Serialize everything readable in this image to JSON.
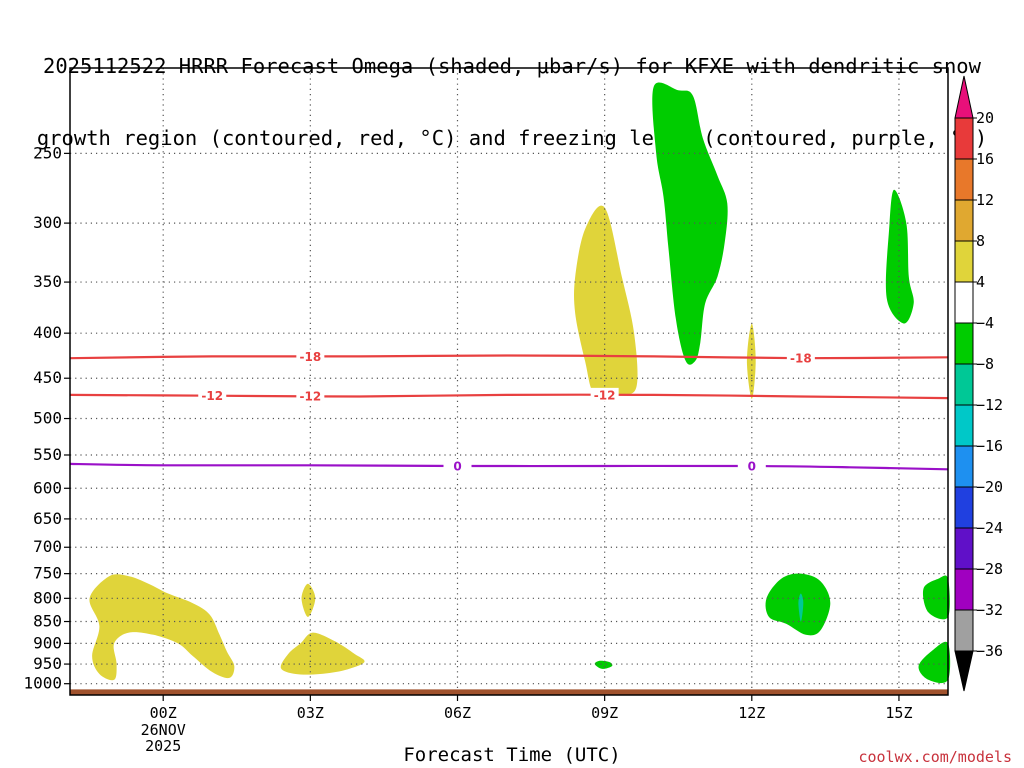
{
  "title_line1": "2025112522 HRRR Forecast Omega (shaded, μbar/s) for KFXE with dendritic snow",
  "title_line2": "growth region (contoured, red, °C) and freezing level (contoured, purple, °C)",
  "credit": "coolwx.com/models",
  "chart_data": {
    "type": "time-height contour",
    "xlabel": "Forecast Time (UTC)",
    "ylabel": "",
    "x_ticks": [
      {
        "hour": 2,
        "label": "00Z",
        "sub": [
          "26NOV",
          "2025"
        ]
      },
      {
        "hour": 5,
        "label": "03Z"
      },
      {
        "hour": 8,
        "label": "06Z"
      },
      {
        "hour": 11,
        "label": "09Z"
      },
      {
        "hour": 14,
        "label": "12Z"
      },
      {
        "hour": 17,
        "label": "15Z"
      }
    ],
    "xlim": [
      0.1,
      18.0
    ],
    "y_scale": "log",
    "y_ticks": [
      250,
      300,
      350,
      400,
      450,
      500,
      550,
      600,
      650,
      700,
      750,
      800,
      850,
      900,
      950,
      1000
    ],
    "ylim": [
      200,
      1030
    ],
    "surface_pressure": 1015,
    "colorbar": {
      "levels": [
        20,
        16,
        12,
        8,
        4,
        -4,
        -8,
        -12,
        -16,
        -20,
        -24,
        -28,
        -32,
        -36
      ],
      "colors": [
        "#e8107a",
        "#e83a3a",
        "#e8782a",
        "#e0a830",
        "#e0d43a",
        "#ffffff",
        "#00cc00",
        "#00c896",
        "#00c8c8",
        "#1e90f0",
        "#2040e0",
        "#6010c8",
        "#a000c0",
        "#a0a0a0",
        "#000000"
      ]
    },
    "contours": [
      {
        "name": "-18",
        "color": "#e84040",
        "label": "-18",
        "points": [
          [
            0.1,
            427
          ],
          [
            3,
            425
          ],
          [
            6,
            425
          ],
          [
            9,
            424
          ],
          [
            12,
            425
          ],
          [
            15,
            427
          ],
          [
            18,
            426
          ]
        ],
        "label_hours": [
          5.0,
          15.0
        ]
      },
      {
        "name": "-12",
        "color": "#e84040",
        "label": "-12",
        "points": [
          [
            0.1,
            470
          ],
          [
            3,
            471
          ],
          [
            6,
            472
          ],
          [
            9,
            470
          ],
          [
            12,
            470
          ],
          [
            15,
            472
          ],
          [
            18,
            474
          ]
        ],
        "label_hours": [
          3.0,
          5.0,
          11.0
        ]
      },
      {
        "name": "0",
        "color": "#9a10c8",
        "label": "0",
        "points": [
          [
            0.1,
            563
          ],
          [
            2,
            565
          ],
          [
            5,
            565
          ],
          [
            8,
            566
          ],
          [
            11,
            566
          ],
          [
            14,
            566
          ],
          [
            16,
            568
          ],
          [
            18,
            571
          ]
        ],
        "label_hours": [
          8.0,
          14.0
        ]
      }
    ],
    "shaded_regions": [
      {
        "value": 4,
        "color": "#e0d43a",
        "points": [
          [
            0.5,
            800
          ],
          [
            0.9,
            755
          ],
          [
            1.3,
            755
          ],
          [
            1.7,
            770
          ],
          [
            2.1,
            790
          ],
          [
            2.6,
            810
          ],
          [
            2.95,
            835
          ],
          [
            3.15,
            880
          ],
          [
            3.3,
            920
          ],
          [
            3.45,
            955
          ],
          [
            3.35,
            985
          ],
          [
            3.0,
            970
          ],
          [
            2.6,
            930
          ],
          [
            2.3,
            900
          ],
          [
            1.8,
            880
          ],
          [
            1.3,
            875
          ],
          [
            1.0,
            900
          ],
          [
            1.05,
            950
          ],
          [
            1.0,
            990
          ],
          [
            0.7,
            975
          ],
          [
            0.55,
            930
          ],
          [
            0.7,
            860
          ]
        ]
      },
      {
        "value": 4,
        "color": "#e0d43a",
        "points": [
          [
            4.4,
            960
          ],
          [
            4.55,
            925
          ],
          [
            4.8,
            900
          ],
          [
            5.05,
            875
          ],
          [
            5.5,
            895
          ],
          [
            5.9,
            925
          ],
          [
            6.1,
            945
          ],
          [
            5.7,
            965
          ],
          [
            5.2,
            975
          ],
          [
            4.7,
            975
          ]
        ]
      },
      {
        "value": 4,
        "color": "#e0d43a",
        "points": [
          [
            4.82,
            800
          ],
          [
            4.95,
            770
          ],
          [
            5.1,
            800
          ],
          [
            4.95,
            840
          ]
        ]
      },
      {
        "value": 4,
        "color": "#e0d43a",
        "points": [
          [
            10.4,
            345
          ],
          [
            10.6,
            305
          ],
          [
            11.0,
            288
          ],
          [
            11.35,
            345
          ],
          [
            11.6,
            400
          ],
          [
            11.65,
            460
          ],
          [
            11.3,
            470
          ],
          [
            10.8,
            470
          ],
          [
            10.6,
            430
          ],
          [
            10.4,
            380
          ]
        ]
      },
      {
        "value": 4,
        "color": "#e0d43a",
        "points": [
          [
            13.9,
            430
          ],
          [
            14.0,
            390
          ],
          [
            14.08,
            430
          ],
          [
            14.0,
            475
          ]
        ]
      },
      {
        "value": -4,
        "color": "#00cc00",
        "points": [
          [
            12.0,
            210
          ],
          [
            12.5,
            212
          ],
          [
            12.8,
            215
          ],
          [
            13.0,
            240
          ],
          [
            13.3,
            265
          ],
          [
            13.5,
            285
          ],
          [
            13.45,
            315
          ],
          [
            13.3,
            345
          ],
          [
            13.05,
            370
          ],
          [
            12.95,
            410
          ],
          [
            12.85,
            430
          ],
          [
            12.65,
            430
          ],
          [
            12.45,
            385
          ],
          [
            12.3,
            320
          ],
          [
            12.2,
            280
          ],
          [
            12.05,
            250
          ]
        ]
      },
      {
        "value": -4,
        "color": "#00cc00",
        "points": [
          [
            16.8,
            305
          ],
          [
            16.9,
            275
          ],
          [
            17.15,
            300
          ],
          [
            17.2,
            345
          ],
          [
            17.3,
            370
          ],
          [
            17.1,
            390
          ],
          [
            16.75,
            365
          ]
        ]
      },
      {
        "value": -4,
        "color": "#00cc00",
        "points": [
          [
            14.3,
            800
          ],
          [
            14.6,
            760
          ],
          [
            15.0,
            750
          ],
          [
            15.4,
            765
          ],
          [
            15.6,
            810
          ],
          [
            15.4,
            870
          ],
          [
            15.1,
            880
          ],
          [
            14.7,
            855
          ],
          [
            14.35,
            840
          ]
        ]
      },
      {
        "value": -8,
        "color": "#00c896",
        "points": [
          [
            14.95,
            810
          ],
          [
            15.0,
            790
          ],
          [
            15.05,
            810
          ],
          [
            15.0,
            850
          ]
        ]
      },
      {
        "value": -4,
        "color": "#00cc00",
        "points": [
          [
            10.8,
            950
          ],
          [
            10.9,
            942
          ],
          [
            11.1,
            945
          ],
          [
            11.15,
            955
          ],
          [
            10.95,
            962
          ]
        ]
      },
      {
        "value": -4,
        "color": "#00cc00",
        "points": [
          [
            17.5,
            780
          ],
          [
            17.8,
            760
          ],
          [
            18.0,
            760
          ],
          [
            18.0,
            840
          ],
          [
            17.6,
            830
          ]
        ]
      },
      {
        "value": -4,
        "color": "#00cc00",
        "points": [
          [
            17.4,
            955
          ],
          [
            17.7,
            915
          ],
          [
            18.0,
            900
          ],
          [
            18.0,
            990
          ],
          [
            17.6,
            990
          ]
        ]
      }
    ]
  }
}
